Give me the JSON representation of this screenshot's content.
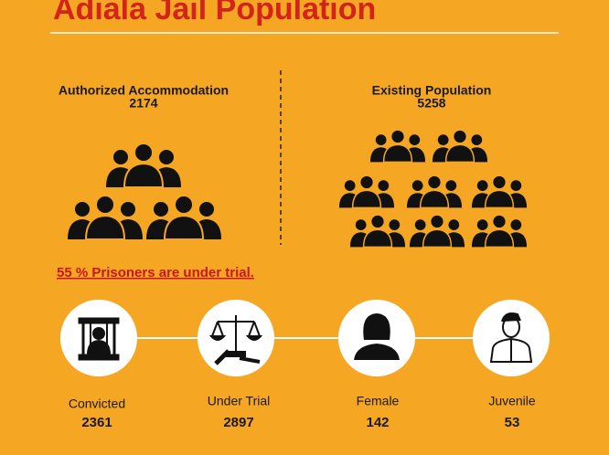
{
  "header": {
    "title": "Adiala Jail Population"
  },
  "capacity": {
    "label": "Authorized Accommodation",
    "value": "2174"
  },
  "existing": {
    "label": "Existing Population",
    "value": "5258"
  },
  "note": "55 % Prisoners are under trial.",
  "categories": [
    {
      "label": "Convicted",
      "value": "2361"
    },
    {
      "label": "Under Trial",
      "value": "2897"
    },
    {
      "label": "Female",
      "value": "142"
    },
    {
      "label": "Juvenile",
      "value": "53"
    }
  ]
}
